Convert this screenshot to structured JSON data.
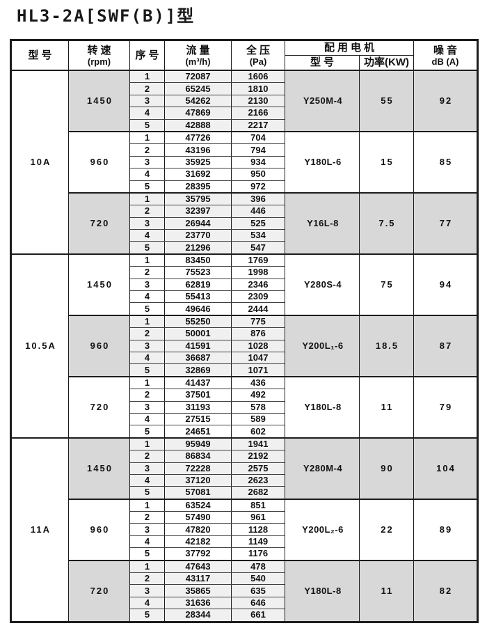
{
  "page": {
    "title": "HL3-2A[SWF(B)]型"
  },
  "colors": {
    "block_shade": "#d8d8d8",
    "subcell_shade": "#f0f0f0",
    "grid_border": "#3f3f3f",
    "frame_border": "#1c1c1c"
  },
  "table": {
    "header": {
      "model": "型号",
      "speed1": "转速",
      "speed2": "(rpm)",
      "serial": "序号",
      "flow1": "流量",
      "flow2": "(m³/h)",
      "pressure1": "全压",
      "pressure2": "(Pa)",
      "motor_group": "配用电机",
      "motor_model": "型号",
      "motor_power": "功率(KW)",
      "noise1": "噪音",
      "noise2": "dB (A)"
    },
    "groups": [
      {
        "model": "10A",
        "blocks": [
          {
            "rpm": "1450",
            "motor": "Y250M-4",
            "power": "55",
            "noise": "92",
            "rows": [
              {
                "no": "1",
                "flow": "72087",
                "pa": "1606"
              },
              {
                "no": "2",
                "flow": "65245",
                "pa": "1810"
              },
              {
                "no": "3",
                "flow": "54262",
                "pa": "2130"
              },
              {
                "no": "4",
                "flow": "47869",
                "pa": "2166"
              },
              {
                "no": "5",
                "flow": "42888",
                "pa": "2217"
              }
            ]
          },
          {
            "rpm": "960",
            "motor": "Y180L-6",
            "power": "15",
            "noise": "85",
            "rows": [
              {
                "no": "1",
                "flow": "47726",
                "pa": "704"
              },
              {
                "no": "2",
                "flow": "43196",
                "pa": "794"
              },
              {
                "no": "3",
                "flow": "35925",
                "pa": "934"
              },
              {
                "no": "4",
                "flow": "31692",
                "pa": "950"
              },
              {
                "no": "5",
                "flow": "28395",
                "pa": "972"
              }
            ]
          },
          {
            "rpm": "720",
            "motor": "Y16L-8",
            "power": "7.5",
            "noise": "77",
            "rows": [
              {
                "no": "1",
                "flow": "35795",
                "pa": "396"
              },
              {
                "no": "2",
                "flow": "32397",
                "pa": "446"
              },
              {
                "no": "3",
                "flow": "26944",
                "pa": "525"
              },
              {
                "no": "4",
                "flow": "23770",
                "pa": "534"
              },
              {
                "no": "5",
                "flow": "21296",
                "pa": "547"
              }
            ]
          }
        ]
      },
      {
        "model": "10.5A",
        "blocks": [
          {
            "rpm": "1450",
            "motor": "Y280S-4",
            "power": "75",
            "noise": "94",
            "rows": [
              {
                "no": "1",
                "flow": "83450",
                "pa": "1769"
              },
              {
                "no": "2",
                "flow": "75523",
                "pa": "1998"
              },
              {
                "no": "3",
                "flow": "62819",
                "pa": "2346"
              },
              {
                "no": "4",
                "flow": "55413",
                "pa": "2309"
              },
              {
                "no": "5",
                "flow": "49646",
                "pa": "2444"
              }
            ]
          },
          {
            "rpm": "960",
            "motor": "Y200L₁-6",
            "power": "18.5",
            "noise": "87",
            "rows": [
              {
                "no": "1",
                "flow": "55250",
                "pa": "775"
              },
              {
                "no": "2",
                "flow": "50001",
                "pa": "876"
              },
              {
                "no": "3",
                "flow": "41591",
                "pa": "1028"
              },
              {
                "no": "4",
                "flow": "36687",
                "pa": "1047"
              },
              {
                "no": "5",
                "flow": "32869",
                "pa": "1071"
              }
            ]
          },
          {
            "rpm": "720",
            "motor": "Y180L-8",
            "power": "11",
            "noise": "79",
            "rows": [
              {
                "no": "1",
                "flow": "41437",
                "pa": "436"
              },
              {
                "no": "2",
                "flow": "37501",
                "pa": "492"
              },
              {
                "no": "3",
                "flow": "31193",
                "pa": "578"
              },
              {
                "no": "4",
                "flow": "27515",
                "pa": "589"
              },
              {
                "no": "5",
                "flow": "24651",
                "pa": "602"
              }
            ]
          }
        ]
      },
      {
        "model": "11A",
        "blocks": [
          {
            "rpm": "1450",
            "motor": "Y280M-4",
            "power": "90",
            "noise": "104",
            "rows": [
              {
                "no": "1",
                "flow": "95949",
                "pa": "1941"
              },
              {
                "no": "2",
                "flow": "86834",
                "pa": "2192"
              },
              {
                "no": "3",
                "flow": "72228",
                "pa": "2575"
              },
              {
                "no": "4",
                "flow": "37120",
                "pa": "2623"
              },
              {
                "no": "5",
                "flow": "57081",
                "pa": "2682"
              }
            ]
          },
          {
            "rpm": "960",
            "motor": "Y200L₂-6",
            "power": "22",
            "noise": "89",
            "rows": [
              {
                "no": "1",
                "flow": "63524",
                "pa": "851"
              },
              {
                "no": "2",
                "flow": "57490",
                "pa": "961"
              },
              {
                "no": "3",
                "flow": "47820",
                "pa": "1128"
              },
              {
                "no": "4",
                "flow": "42182",
                "pa": "1149"
              },
              {
                "no": "5",
                "flow": "37792",
                "pa": "1176"
              }
            ]
          },
          {
            "rpm": "720",
            "motor": "Y180L-8",
            "power": "11",
            "noise": "82",
            "rows": [
              {
                "no": "1",
                "flow": "47643",
                "pa": "478"
              },
              {
                "no": "2",
                "flow": "43117",
                "pa": "540"
              },
              {
                "no": "3",
                "flow": "35865",
                "pa": "635"
              },
              {
                "no": "4",
                "flow": "31636",
                "pa": "646"
              },
              {
                "no": "5",
                "flow": "28344",
                "pa": "661"
              }
            ]
          }
        ]
      }
    ]
  }
}
